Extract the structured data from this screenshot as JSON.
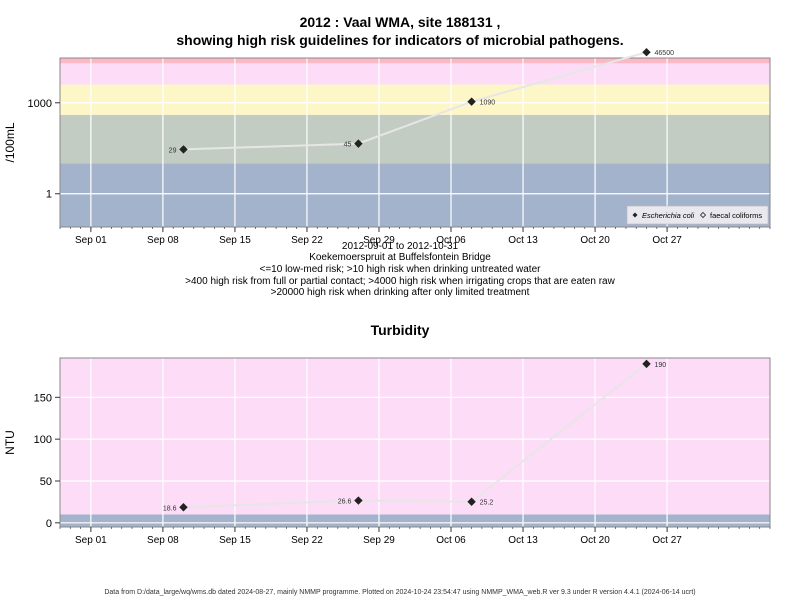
{
  "chart_data": [
    {
      "type": "line",
      "title": "2012 : Vaal WMA, site 188131 ,",
      "subtitle": "showing high risk guidelines for indicators of microbial pathogens.",
      "ylabel": "/100mL",
      "yscale": "log",
      "ylim": [
        0.08,
        30000
      ],
      "yticks": [
        1,
        1000
      ],
      "xlim": [
        "2012-08-29",
        "2012-11-06"
      ],
      "xticks": [
        "Sep 01",
        "Sep 08",
        "Sep 15",
        "Sep 22",
        "Sep 29",
        "Oct 06",
        "Oct 13",
        "Oct 20",
        "Oct 27"
      ],
      "xtick_dates": [
        "2012-09-01",
        "2012-09-08",
        "2012-09-15",
        "2012-09-22",
        "2012-09-29",
        "2012-10-06",
        "2012-10-13",
        "2012-10-20",
        "2012-10-27"
      ],
      "bands": [
        {
          "from": 0.08,
          "to": 10,
          "color": "#a3b3cc"
        },
        {
          "from": 10,
          "to": 400,
          "color": "#c2ccc2"
        },
        {
          "from": 400,
          "to": 4000,
          "color": "#fdf6c7"
        },
        {
          "from": 4000,
          "to": 20000,
          "color": "#fddcf8"
        },
        {
          "from": 20000,
          "to": 30000,
          "color": "#fbb9c6"
        }
      ],
      "series": [
        {
          "name": "Escherichia coli",
          "marker": "filled-diamond",
          "color": "#222222",
          "x": [
            "2012-09-10",
            "2012-09-27",
            "2012-10-08",
            "2012-10-25"
          ],
          "y": [
            29,
            45,
            1090,
            46500
          ],
          "labels": [
            "29",
            "45",
            "1090",
            "46500"
          ]
        },
        {
          "name": "faecal coliforms",
          "marker": "open-diamond",
          "color": "#222222",
          "x": [],
          "y": []
        }
      ],
      "legend": "bottom-right",
      "grid": true,
      "caption_lines": [
        "2012-09-01 to 2012-10-31",
        "Koekemoerspruit at Buffelsfontein Bridge",
        "<=10 low-med risk; >10 high risk when drinking untreated water",
        ">400 high risk from full or partial contact; >4000 high risk when irrigating crops that are eaten raw",
        ">20000 high risk when drinking after only limited treatment"
      ]
    },
    {
      "type": "line",
      "title": "Turbidity",
      "ylabel": "NTU",
      "ylim": [
        -5,
        197
      ],
      "yticks": [
        0,
        50,
        100,
        150
      ],
      "xlim": [
        "2012-08-29",
        "2012-11-06"
      ],
      "xticks": [
        "Sep 01",
        "Sep 08",
        "Sep 15",
        "Sep 22",
        "Sep 29",
        "Oct 06",
        "Oct 13",
        "Oct 20",
        "Oct 27"
      ],
      "xtick_dates": [
        "2012-09-01",
        "2012-09-08",
        "2012-09-15",
        "2012-09-22",
        "2012-09-29",
        "2012-10-06",
        "2012-10-13",
        "2012-10-20",
        "2012-10-27"
      ],
      "bands": [
        {
          "from": -5,
          "to": 10,
          "color": "#a3b3cc"
        },
        {
          "from": 10,
          "to": 197,
          "color": "#fddcf8"
        }
      ],
      "series": [
        {
          "name": "Turbidity",
          "marker": "filled-diamond",
          "color": "#222222",
          "x": [
            "2012-09-10",
            "2012-09-27",
            "2012-10-08",
            "2012-10-25"
          ],
          "y": [
            18.6,
            26.6,
            25.2,
            190
          ],
          "labels": [
            "18.6",
            "26.6",
            "25.2",
            "190"
          ]
        }
      ],
      "grid": true
    }
  ],
  "footer": "Data from D:/data_large/wq/wms.db dated 2024-08-27, mainly NMMP programme. Plotted on 2024-10-24 23:54:47 using NMMP_WMA_web.R ver 9.3 under R version 4.4.1 (2024-06-14 ucrt)"
}
